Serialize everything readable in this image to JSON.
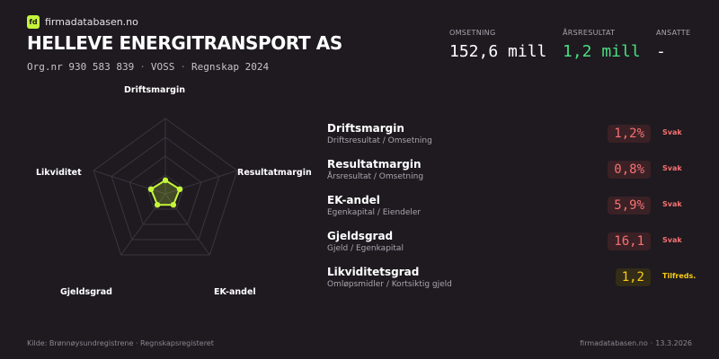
{
  "brand": {
    "logo_text": "fd",
    "name": "firmadatabasen.no",
    "accent_color": "#c5f53a"
  },
  "company": {
    "name": "HELLEVE ENERGITRANSPORT AS",
    "org_nr": "Org.nr 930 583 839",
    "location": "VOSS",
    "report": "Regnskap 2024"
  },
  "kpis": {
    "revenue": {
      "label": "OMSETNING",
      "value": "152,6 mill"
    },
    "result": {
      "label": "ÅRSRESULTAT",
      "value": "1,2 mill",
      "color": "#4ade80"
    },
    "employees": {
      "label": "ANSATTE",
      "value": "-"
    }
  },
  "radar": {
    "axes": [
      "Driftsmargin",
      "Resultatmargin",
      "EK-andel",
      "Gjeldsgrad",
      "Likviditet"
    ],
    "scores": [
      0.18,
      0.2,
      0.18,
      0.18,
      0.2
    ],
    "color": "#c5f53a"
  },
  "metrics": [
    {
      "name": "Driftsmargin",
      "formula": "Driftsresultat / Omsetning",
      "value": "1,2%",
      "status": "Svak",
      "tone": "weak"
    },
    {
      "name": "Resultatmargin",
      "formula": "Årsresultat / Omsetning",
      "value": "0,8%",
      "status": "Svak",
      "tone": "weak"
    },
    {
      "name": "EK-andel",
      "formula": "Egenkapital / Eiendeler",
      "value": "5,9%",
      "status": "Svak",
      "tone": "weak"
    },
    {
      "name": "Gjeldsgrad",
      "formula": "Gjeld / Egenkapital",
      "value": "16,1",
      "status": "Svak",
      "tone": "weak"
    },
    {
      "name": "Likviditetsgrad",
      "formula": "Omløpsmidler / Kortsiktig gjeld",
      "value": "1,2",
      "status": "Tilfreds.",
      "tone": "ok"
    }
  ],
  "tones": {
    "weak": {
      "text": "#f87171",
      "bg": "#3a2126",
      "status": "#f87171"
    },
    "ok": {
      "text": "#facc15",
      "bg": "#332c17",
      "status": "#facc15"
    }
  },
  "footer": {
    "source": "Kilde: Brønnøysundregistrene · Regnskapsregisteret",
    "site": "firmadatabasen.no",
    "date": "13.3.2026"
  }
}
